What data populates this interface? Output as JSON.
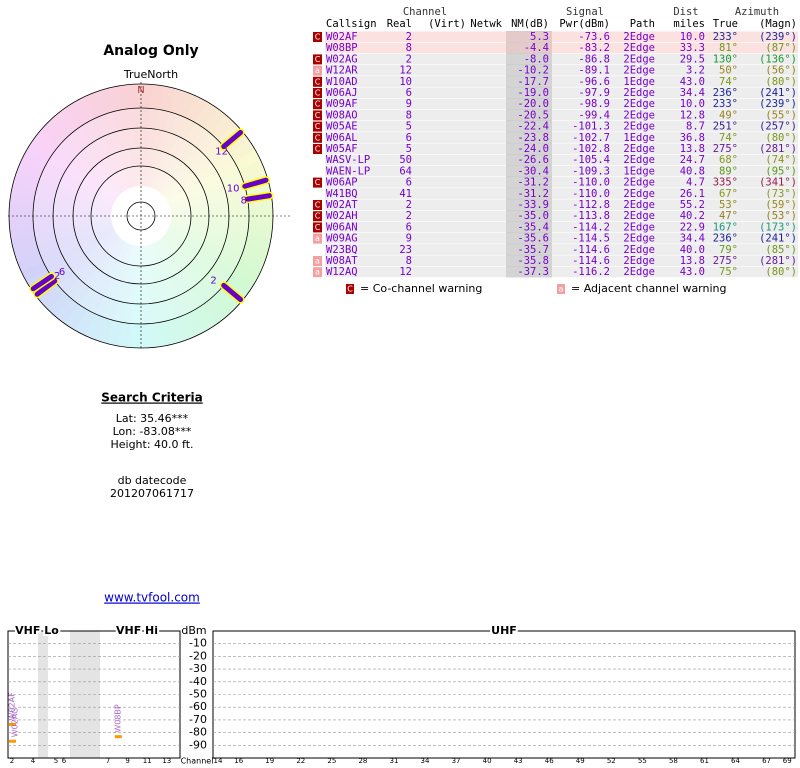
{
  "title": "Analog Only",
  "compass": {
    "true_north": "TrueNorth",
    "north": "N"
  },
  "search": {
    "heading": "Search Criteria",
    "lat": "Lat: 35.46***",
    "lon": "Lon: -83.08***",
    "height": "Height: 40.0 ft.",
    "db_label": "db datecode",
    "db_value": "201207061717"
  },
  "link": "www.tvfool.com",
  "table": {
    "group_headers": [
      "Channel",
      "Signal",
      "Dist",
      "Azimuth"
    ],
    "columns": [
      "Callsign",
      "Real",
      "(Virt)",
      "Netwk",
      "NM(dB)",
      "Pwr(dBm)",
      "Path",
      "miles",
      "True",
      "(Magn)"
    ],
    "rows": [
      {
        "warn": "C",
        "callsign": "W02AF",
        "real": "2",
        "nm": "5.3",
        "pwr": "-73.6",
        "path": "2Edge",
        "miles": "10.0",
        "true": "233°",
        "magn": "(239°)"
      },
      {
        "callsign": "W08BP",
        "real": "8",
        "nm": "-4.4",
        "pwr": "-83.2",
        "path": "2Edge",
        "miles": "33.3",
        "true": "81°",
        "magn": "(87°)"
      },
      {
        "warn": "C",
        "callsign": "W02AG",
        "real": "2",
        "nm": "-8.0",
        "pwr": "-86.8",
        "path": "2Edge",
        "miles": "29.5",
        "true": "130°",
        "magn": "(136°)"
      },
      {
        "warn": "a",
        "callsign": "W12AR",
        "real": "12",
        "nm": "-10.2",
        "pwr": "-89.1",
        "path": "2Edge",
        "miles": "3.2",
        "true": "50°",
        "magn": "(56°)"
      },
      {
        "warn": "C",
        "callsign": "W10AD",
        "real": "10",
        "nm": "-17.7",
        "pwr": "-96.6",
        "path": "1Edge",
        "miles": "43.0",
        "true": "74°",
        "magn": "(80°)"
      },
      {
        "warn": "C",
        "callsign": "W06AJ",
        "real": "6",
        "nm": "-19.0",
        "pwr": "-97.9",
        "path": "2Edge",
        "miles": "34.4",
        "true": "236°",
        "magn": "(241°)"
      },
      {
        "warn": "C",
        "callsign": "W09AF",
        "real": "9",
        "nm": "-20.0",
        "pwr": "-98.9",
        "path": "2Edge",
        "miles": "10.0",
        "true": "233°",
        "magn": "(239°)"
      },
      {
        "warn": "C",
        "callsign": "W08AO",
        "real": "8",
        "nm": "-20.5",
        "pwr": "-99.4",
        "path": "2Edge",
        "miles": "12.8",
        "true": "49°",
        "magn": "(55°)"
      },
      {
        "warn": "C",
        "callsign": "W05AE",
        "real": "5",
        "nm": "-22.4",
        "pwr": "-101.3",
        "path": "2Edge",
        "miles": "8.7",
        "true": "251°",
        "magn": "(257°)"
      },
      {
        "warn": "C",
        "callsign": "W06AL",
        "real": "6",
        "nm": "-23.8",
        "pwr": "-102.7",
        "path": "1Edge",
        "miles": "36.8",
        "true": "74°",
        "magn": "(80°)"
      },
      {
        "warn": "C",
        "callsign": "W05AF",
        "real": "5",
        "nm": "-24.0",
        "pwr": "-102.8",
        "path": "2Edge",
        "miles": "13.8",
        "true": "275°",
        "magn": "(281°)"
      },
      {
        "callsign": "WASV-LP",
        "real": "50",
        "nm": "-26.6",
        "pwr": "-105.4",
        "path": "2Edge",
        "miles": "24.7",
        "true": "68°",
        "magn": "(74°)"
      },
      {
        "callsign": "WAEN-LP",
        "real": "64",
        "nm": "-30.4",
        "pwr": "-109.3",
        "path": "1Edge",
        "miles": "40.8",
        "true": "89°",
        "magn": "(95°)"
      },
      {
        "warn": "C",
        "callsign": "W06AP",
        "real": "6",
        "nm": "-31.2",
        "pwr": "-110.0",
        "path": "2Edge",
        "miles": "4.7",
        "true": "335°",
        "magn": "(341°)"
      },
      {
        "callsign": "W41BQ",
        "real": "41",
        "nm": "-31.2",
        "pwr": "-110.0",
        "path": "2Edge",
        "miles": "26.1",
        "true": "67°",
        "magn": "(73°)"
      },
      {
        "warn": "C",
        "callsign": "W02AT",
        "real": "2",
        "nm": "-33.9",
        "pwr": "-112.8",
        "path": "2Edge",
        "miles": "55.2",
        "true": "53°",
        "magn": "(59°)"
      },
      {
        "warn": "C",
        "callsign": "W02AH",
        "real": "2",
        "nm": "-35.0",
        "pwr": "-113.8",
        "path": "2Edge",
        "miles": "40.2",
        "true": "47°",
        "magn": "(53°)"
      },
      {
        "warn": "C",
        "callsign": "W06AN",
        "real": "6",
        "nm": "-35.4",
        "pwr": "-114.2",
        "path": "2Edge",
        "miles": "22.9",
        "true": "167°",
        "magn": "(173°)"
      },
      {
        "warn": "a",
        "callsign": "W09AG",
        "real": "9",
        "nm": "-35.6",
        "pwr": "-114.5",
        "path": "2Edge",
        "miles": "34.4",
        "true": "236°",
        "magn": "(241°)"
      },
      {
        "callsign": "W23BQ",
        "real": "23",
        "nm": "-35.7",
        "pwr": "-114.6",
        "path": "2Edge",
        "miles": "40.0",
        "true": "79°",
        "magn": "(85°)"
      },
      {
        "warn": "a",
        "callsign": "W08AT",
        "real": "8",
        "nm": "-35.8",
        "pwr": "-114.6",
        "path": "2Edge",
        "miles": "13.8",
        "true": "275°",
        "magn": "(281°)"
      },
      {
        "warn": "a",
        "callsign": "W12AQ",
        "real": "12",
        "nm": "-37.3",
        "pwr": "-116.2",
        "path": "2Edge",
        "miles": "43.0",
        "true": "75°",
        "magn": "(80°)"
      }
    ]
  },
  "legend": {
    "co": "C",
    "co_text": "= Co-channel warning",
    "adj": "a",
    "adj_text": "= Adjacent channel warning"
  },
  "spectrum": {
    "bands": [
      "VHF Lo",
      "VHF Hi",
      "UHF"
    ],
    "y_unit": "dBm",
    "ylim": [
      -100,
      0
    ],
    "yticks": [
      -10,
      -20,
      -30,
      -40,
      -50,
      -60,
      -70,
      -80,
      -90
    ],
    "channel_label": "Channel",
    "channels": [
      2,
      4,
      5,
      6,
      7,
      9,
      11,
      13,
      14,
      16,
      19,
      22,
      25,
      28,
      31,
      34,
      37,
      40,
      43,
      46,
      49,
      52,
      55,
      58,
      61,
      64,
      67,
      69
    ]
  }
}
